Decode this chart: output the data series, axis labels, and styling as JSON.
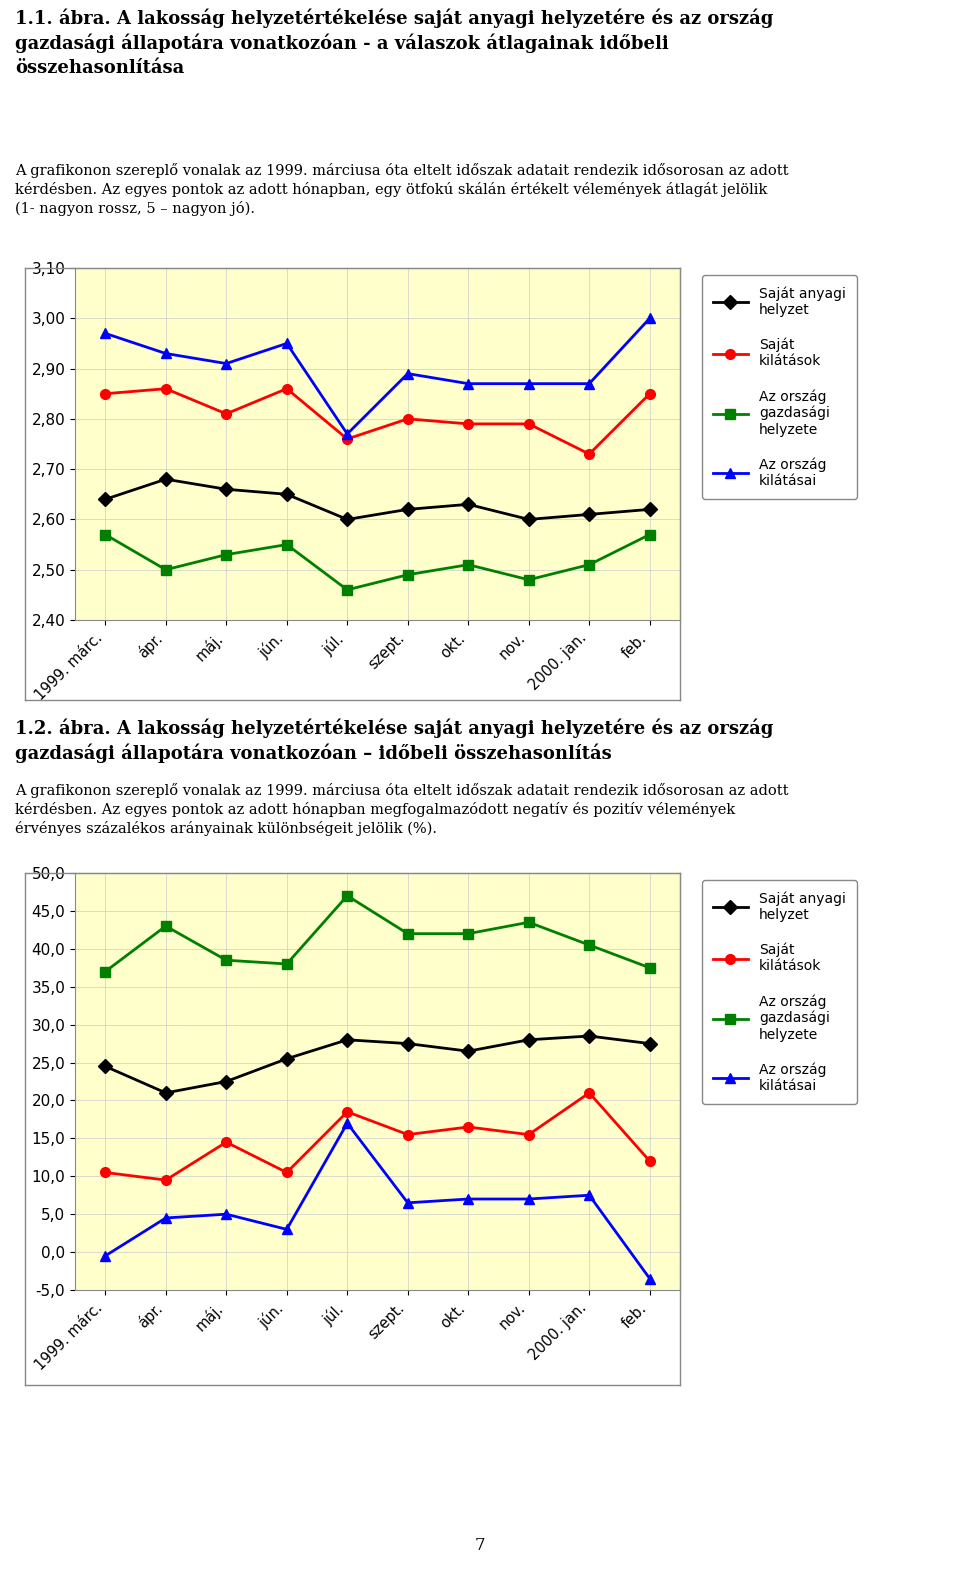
{
  "title1": "1.1. ábra. A lakosság helyzetértékelése saját anyagi helyzetére és az ország\ngazdasági állapotára vonatkozóan - a válaszok átlagainak időbeli\nösszehasonlítása",
  "subtitle1": "A grafikonon szereplő vonalak az 1999. márciusa óta eltelt időszak adatait rendezik idősorosan az adott\nkérdésben. Az egyes pontok az adott hónapban, egy ötfokú skálán értékelt vélemények átlagát jelölik\n(1- nagyon rossz, 5 – nagyon jó).",
  "title2": "1.2. ábra. A lakosság helyzetértékelése saját anyagi helyzetére és az ország\ngazdasági állapotára vonatkozóan – időbeli összehasonlítás",
  "subtitle2": "A grafikonon szereplő vonalak az 1999. márciusa óta eltelt időszak adatait rendezik idősorosan az adott\nkérdésben. Az egyes pontok az adott hónapban megfogalmazódott negatív és pozitív vélemények\nérvényes százalékos arányainak különbségeit jelölik (%).",
  "x_labels": [
    "1999. márc.",
    "ápr.",
    "máj.",
    "jún.",
    "júl.",
    "szept.",
    "okt.",
    "nov.",
    "2000. jan.",
    "feb."
  ],
  "chart1": {
    "sajat_anyagi": [
      2.64,
      2.68,
      2.66,
      2.65,
      2.6,
      2.62,
      2.63,
      2.6,
      2.61,
      2.62
    ],
    "sajat_kilatas": [
      2.85,
      2.86,
      2.81,
      2.86,
      2.76,
      2.8,
      2.79,
      2.79,
      2.73,
      2.85
    ],
    "orszag_gazd": [
      2.57,
      2.5,
      2.53,
      2.55,
      2.46,
      2.49,
      2.51,
      2.48,
      2.51,
      2.57
    ],
    "orszag_kilatas": [
      2.97,
      2.93,
      2.91,
      2.95,
      2.77,
      2.89,
      2.87,
      2.87,
      2.87,
      3.0
    ],
    "ylim": [
      2.4,
      3.1
    ],
    "yticks": [
      2.4,
      2.5,
      2.6,
      2.7,
      2.8,
      2.9,
      3.0,
      3.1
    ]
  },
  "chart2": {
    "sajat_anyagi": [
      24.5,
      21.0,
      22.5,
      25.5,
      28.0,
      27.5,
      26.5,
      28.0,
      28.5,
      27.5
    ],
    "sajat_kilatas": [
      10.5,
      9.5,
      14.5,
      10.5,
      18.5,
      15.5,
      16.5,
      15.5,
      21.0,
      12.0
    ],
    "orszag_gazd": [
      37.0,
      43.0,
      38.5,
      38.0,
      47.0,
      42.0,
      42.0,
      43.5,
      40.5,
      37.5
    ],
    "orszag_kilatas": [
      -0.5,
      4.5,
      5.0,
      3.0,
      17.0,
      6.5,
      7.0,
      7.0,
      7.5,
      -3.5
    ],
    "ylim": [
      -5.0,
      50.0
    ],
    "yticks": [
      -5.0,
      0.0,
      5.0,
      10.0,
      15.0,
      20.0,
      25.0,
      30.0,
      35.0,
      40.0,
      45.0,
      50.0
    ]
  },
  "colors": [
    "#000000",
    "#FF0000",
    "#008000",
    "#0000FF"
  ],
  "legend_labels": [
    "Saját anyagi\nhelyzet",
    "Saját\nkilátások",
    "Az ország\ngazdasági\nhelyzete",
    "Az ország\nkilátásai"
  ],
  "plot_bg": "#FFFFCC",
  "figure_bg": "#FFFFFF",
  "footer": "7",
  "border_color": "#888888"
}
